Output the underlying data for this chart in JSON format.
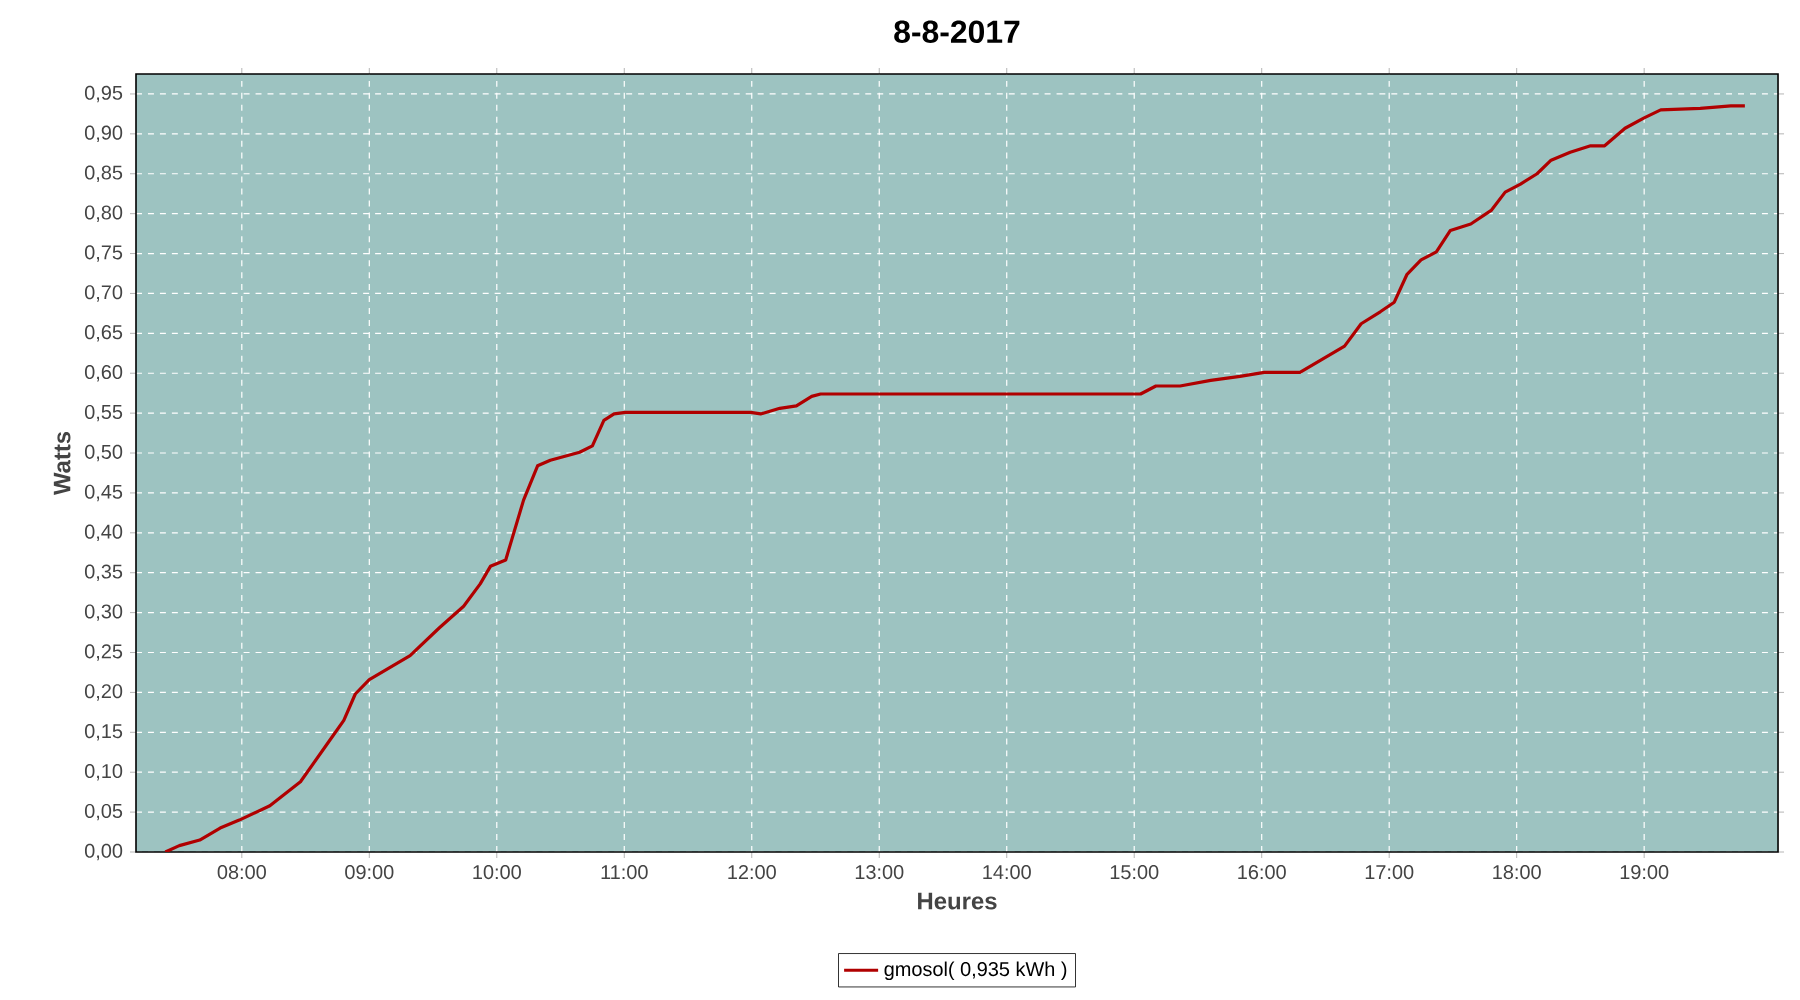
{
  "chart_data": {
    "type": "line",
    "title": "8-8-2017",
    "xlabel": "Heures",
    "ylabel": "Watts",
    "xlim": [
      7.17,
      20.05
    ],
    "ylim": [
      0,
      0.975
    ],
    "xticks": [
      {
        "value": 8,
        "label": "08:00"
      },
      {
        "value": 9,
        "label": "09:00"
      },
      {
        "value": 10,
        "label": "10:00"
      },
      {
        "value": 11,
        "label": "11:00"
      },
      {
        "value": 12,
        "label": "12:00"
      },
      {
        "value": 13,
        "label": "13:00"
      },
      {
        "value": 14,
        "label": "14:00"
      },
      {
        "value": 15,
        "label": "15:00"
      },
      {
        "value": 16,
        "label": "16:00"
      },
      {
        "value": 17,
        "label": "17:00"
      },
      {
        "value": 18,
        "label": "18:00"
      },
      {
        "value": 19,
        "label": "19:00"
      }
    ],
    "yticks": [
      {
        "value": 0,
        "label": "0,00"
      },
      {
        "value": 0.05,
        "label": "0,05"
      },
      {
        "value": 0.1,
        "label": "0,10"
      },
      {
        "value": 0.15,
        "label": "0,15"
      },
      {
        "value": 0.2,
        "label": "0,20"
      },
      {
        "value": 0.25,
        "label": "0,25"
      },
      {
        "value": 0.3,
        "label": "0,30"
      },
      {
        "value": 0.35,
        "label": "0,35"
      },
      {
        "value": 0.4,
        "label": "0,40"
      },
      {
        "value": 0.45,
        "label": "0,45"
      },
      {
        "value": 0.5,
        "label": "0,50"
      },
      {
        "value": 0.55,
        "label": "0,55"
      },
      {
        "value": 0.6,
        "label": "0,60"
      },
      {
        "value": 0.65,
        "label": "0,65"
      },
      {
        "value": 0.7,
        "label": "0,70"
      },
      {
        "value": 0.75,
        "label": "0,75"
      },
      {
        "value": 0.8,
        "label": "0,80"
      },
      {
        "value": 0.85,
        "label": "0,85"
      },
      {
        "value": 0.9,
        "label": "0,90"
      },
      {
        "value": 0.95,
        "label": "0,95"
      }
    ],
    "grid": true,
    "legend": "bottom",
    "marker": "none",
    "line_style": "solid",
    "series": [
      {
        "name": "gmosol( 0,935 kWh )",
        "color": "#b00000",
        "x": [
          7.4,
          7.51,
          7.67,
          7.83,
          7.98,
          8.22,
          8.46,
          8.69,
          8.8,
          8.89,
          9.0,
          9.16,
          9.32,
          9.55,
          9.74,
          9.87,
          9.95,
          10.07,
          10.21,
          10.32,
          10.42,
          10.65,
          10.75,
          10.84,
          10.92,
          11.01,
          11.99,
          12.07,
          12.22,
          12.35,
          12.47,
          12.54,
          15.05,
          15.17,
          15.36,
          15.6,
          15.83,
          16.02,
          16.3,
          16.46,
          16.65,
          16.78,
          16.93,
          17.04,
          17.14,
          17.25,
          17.37,
          17.48,
          17.64,
          17.8,
          17.91,
          18.03,
          18.16,
          18.27,
          18.42,
          18.58,
          18.69,
          18.85,
          19.0,
          19.13,
          19.44,
          19.68,
          19.79
        ],
        "values": [
          0,
          0.008,
          0.015,
          0.03,
          0.04,
          0.058,
          0.088,
          0.14,
          0.165,
          0.198,
          0.216,
          0.231,
          0.246,
          0.281,
          0.308,
          0.336,
          0.358,
          0.366,
          0.441,
          0.484,
          0.491,
          0.501,
          0.509,
          0.541,
          0.549,
          0.551,
          0.551,
          0.549,
          0.556,
          0.559,
          0.571,
          0.574,
          0.574,
          0.584,
          0.584,
          0.591,
          0.596,
          0.601,
          0.601,
          0.616,
          0.634,
          0.662,
          0.677,
          0.689,
          0.724,
          0.742,
          0.752,
          0.779,
          0.787,
          0.804,
          0.827,
          0.837,
          0.85,
          0.867,
          0.877,
          0.885,
          0.885,
          0.907,
          0.92,
          0.93,
          0.932,
          0.935,
          0.935
        ]
      }
    ]
  }
}
